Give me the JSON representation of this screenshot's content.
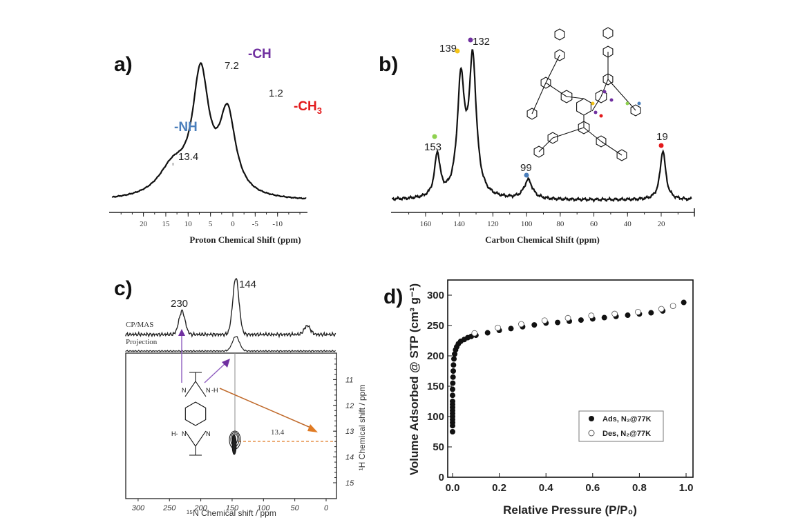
{
  "chart_data": [
    {
      "panel": "a)",
      "type": "line",
      "title": "",
      "xlabel": "Proton Chemical Shift  (ppm)",
      "xlim": [
        27.7,
        -16.7
      ],
      "xticks": [
        "20",
        "15",
        "10",
        "5",
        "0",
        "-5",
        "-10"
      ],
      "xtick_values": [
        20,
        15,
        10,
        5,
        0,
        -5,
        -10
      ],
      "peaks": [
        {
          "shift": 7.2,
          "label": "7.2",
          "intensity": 0.82,
          "hwhm": 2.2
        },
        {
          "shift": 1.2,
          "label": "1.2",
          "intensity": 0.55,
          "hwhm": 2.2
        },
        {
          "shift": 13.4,
          "label": "13.4",
          "intensity": 0.2,
          "hwhm": 4
        }
      ],
      "annotations": [
        {
          "text": "-NH",
          "color": "#4a7ebb"
        },
        {
          "text": "-CH",
          "color": "#7030a0"
        },
        {
          "text": "-CH",
          "sub": "3",
          "color": "#e31a1c"
        }
      ]
    },
    {
      "panel": "b)",
      "type": "line",
      "xlabel": "Carbon Chemical Shift  (ppm)",
      "xlim": [
        180.5,
        0
      ],
      "xticks": [
        "160",
        "140",
        "120",
        "100",
        "80",
        "60",
        "40",
        "20"
      ],
      "xtick_values": [
        160,
        140,
        120,
        100,
        80,
        60,
        40,
        20
      ],
      "peaks": [
        {
          "shift": 132,
          "label": "132",
          "intensity": 0.85,
          "hwhm": 2.6,
          "marker": "#7030a0"
        },
        {
          "shift": 139,
          "label": "139",
          "intensity": 0.72,
          "hwhm": 2.6,
          "marker": "#f5c518"
        },
        {
          "shift": 153,
          "label": "153",
          "intensity": 0.27,
          "hwhm": 2,
          "marker": "#8fd14f"
        },
        {
          "shift": 99,
          "label": "99",
          "intensity": 0.12,
          "hwhm": 3,
          "marker": "#4a7ebb"
        },
        {
          "shift": 19,
          "label": "19",
          "intensity": 0.31,
          "hwhm": 2,
          "marker": "#e31a1c"
        }
      ]
    },
    {
      "panel": "c)",
      "type": "heatmap",
      "xlabel": "¹⁵N Chemical shift / ppm",
      "ylabel": "¹H Chemical shift / ppm",
      "xlim": [
        320,
        -15
      ],
      "ylim": [
        10,
        15
      ],
      "xticks": [
        "300",
        "250",
        "200",
        "150",
        "100",
        "50",
        "0"
      ],
      "xtick_values": [
        300,
        250,
        200,
        150,
        100,
        50,
        0
      ],
      "yticks": [
        "11",
        "12",
        "13",
        "14",
        "15"
      ],
      "ytick_values": [
        11,
        12,
        13,
        14,
        15
      ],
      "traces": [
        {
          "name": "CP/MAS",
          "peaks": [
            {
              "shift": 144,
              "label": "144",
              "intensity": 0.97
            },
            {
              "shift": 230,
              "label": "230",
              "intensity": 0.4
            },
            {
              "shift": 30,
              "intensity": 0.15
            }
          ]
        },
        {
          "name": "Projection",
          "peaks": [
            {
              "shift": 144,
              "intensity": 0.25
            }
          ]
        }
      ],
      "cross_peak": {
        "n_shift": 144,
        "h_shift": 13.4,
        "label": "13.4"
      }
    },
    {
      "panel": "d)",
      "type": "scatter",
      "xlabel": "Relative Pressure (P/P₀)",
      "ylabel": "Volume Adsorbed @ STP (cm³ g⁻¹)",
      "xlim": [
        -0.03,
        1.03
      ],
      "ylim": [
        0,
        325
      ],
      "xticks": [
        "0.0",
        "0.2",
        "0.4",
        "0.6",
        "0.8",
        "1.0"
      ],
      "xtick_values": [
        0,
        0.2,
        0.4,
        0.6,
        0.8,
        1.0
      ],
      "yticks": [
        "0",
        "50",
        "100",
        "150",
        "200",
        "250",
        "300"
      ],
      "ytick_values": [
        0,
        50,
        100,
        150,
        200,
        250,
        300
      ],
      "legend_position": "bottom-right",
      "series": [
        {
          "name": "Ads, N₂@77K",
          "marker": "filled",
          "points": [
            [
              0,
              75
            ],
            [
              0,
              85
            ],
            [
              0,
              90
            ],
            [
              0,
              95
            ],
            [
              0,
              100
            ],
            [
              0,
              105
            ],
            [
              0,
              110
            ],
            [
              0,
              115
            ],
            [
              0,
              120
            ],
            [
              0,
              125
            ],
            [
              0,
              135
            ],
            [
              0,
              145
            ],
            [
              0.001,
              155
            ],
            [
              0.002,
              165
            ],
            [
              0.003,
              175
            ],
            [
              0.004,
              185
            ],
            [
              0.006,
              195
            ],
            [
              0.009,
              203
            ],
            [
              0.013,
              210
            ],
            [
              0.018,
              215
            ],
            [
              0.025,
              220
            ],
            [
              0.035,
              224
            ],
            [
              0.05,
              227
            ],
            [
              0.065,
              230
            ],
            [
              0.08,
              232
            ],
            [
              0.1,
              234
            ],
            [
              0.15,
              238
            ],
            [
              0.2,
              242
            ],
            [
              0.25,
              245
            ],
            [
              0.3,
              248
            ],
            [
              0.35,
              251
            ],
            [
              0.4,
              254
            ],
            [
              0.45,
              255
            ],
            [
              0.5,
              257
            ],
            [
              0.55,
              259
            ],
            [
              0.6,
              261
            ],
            [
              0.65,
              263
            ],
            [
              0.7,
              265
            ],
            [
              0.75,
              267
            ],
            [
              0.8,
              269
            ],
            [
              0.85,
              271
            ],
            [
              0.9,
              274
            ],
            [
              0.99,
              288
            ]
          ]
        },
        {
          "name": "Des, N₂@77K",
          "marker": "open",
          "points": [
            [
              0.1,
              235
            ],
            [
              0.2,
              244
            ],
            [
              0.3,
              250
            ],
            [
              0.4,
              256
            ],
            [
              0.5,
              260
            ],
            [
              0.6,
              264
            ],
            [
              0.7,
              267
            ],
            [
              0.8,
              270
            ],
            [
              0.9,
              275
            ],
            [
              0.95,
              280
            ]
          ]
        }
      ]
    }
  ]
}
